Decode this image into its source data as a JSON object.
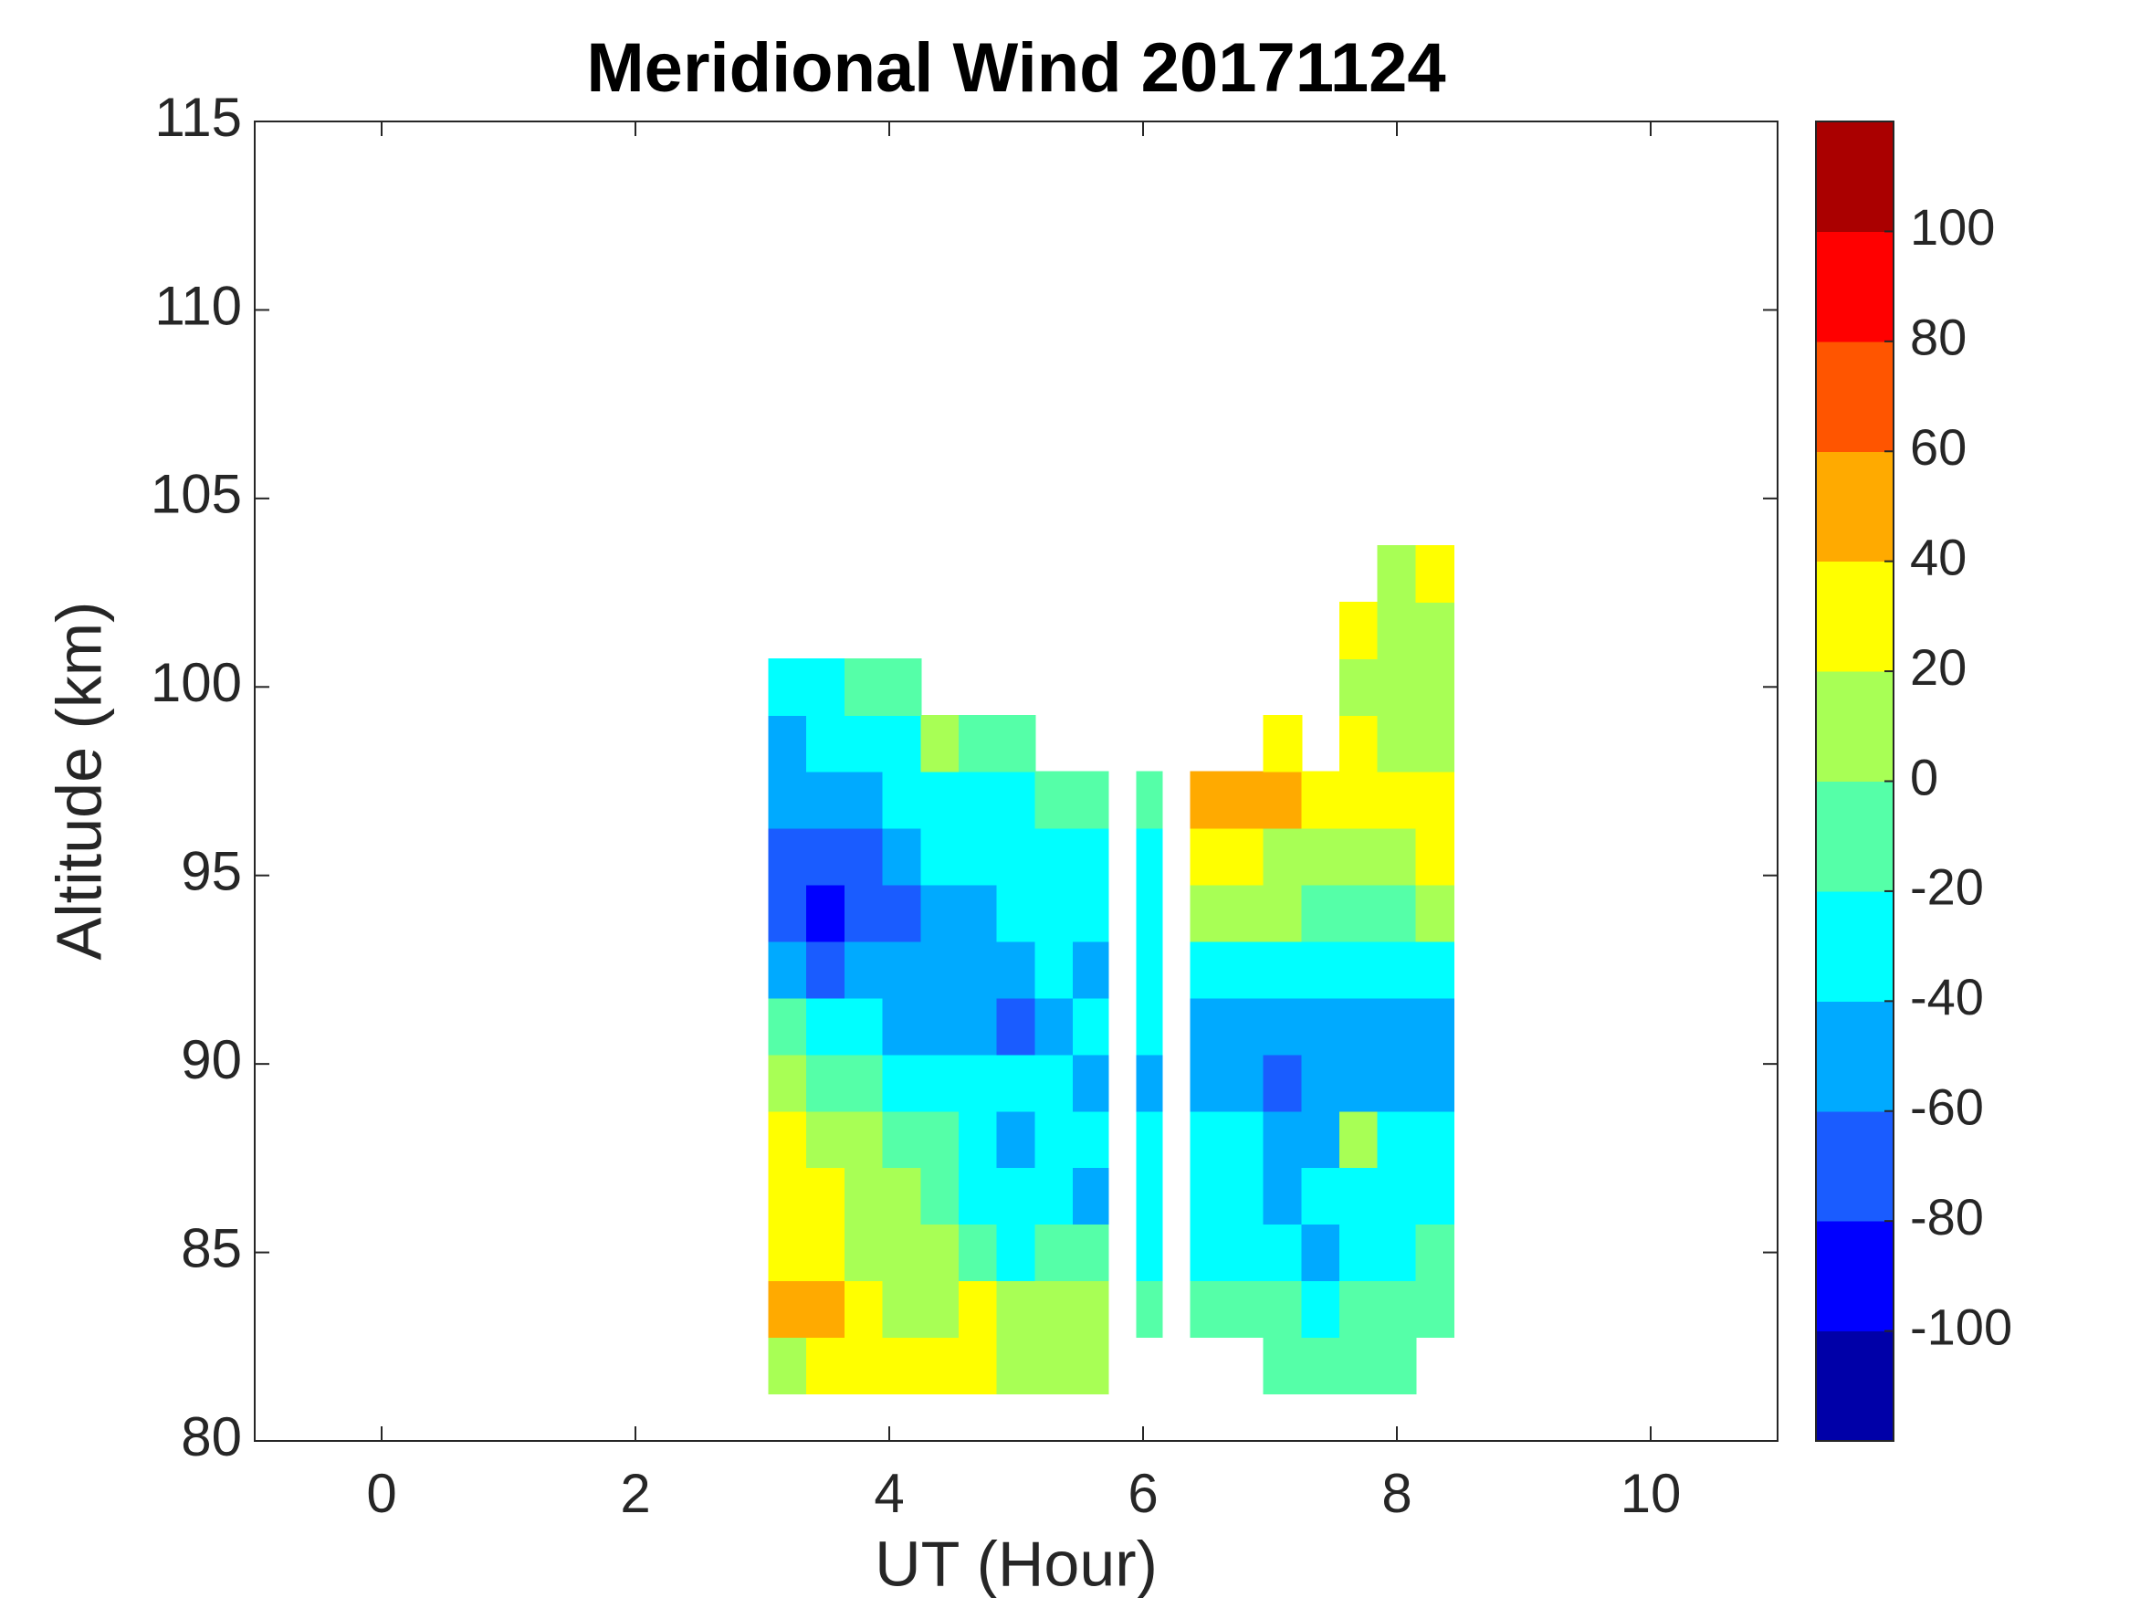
{
  "chart_data": {
    "type": "contour",
    "title": "Meridional Wind 20171124",
    "xlabel": "UT (Hour)",
    "ylabel": "Altitude (km)",
    "xlim": [
      -1,
      11
    ],
    "xticks": [
      0,
      2,
      4,
      6,
      8,
      10
    ],
    "ylim": [
      80,
      115
    ],
    "yticks": [
      80,
      85,
      90,
      95,
      100,
      105,
      110,
      115
    ],
    "x": [
      3.2,
      3.5,
      3.8,
      4.1,
      4.4,
      4.7,
      5.0,
      5.3,
      5.6,
      5.85,
      6.05,
      6.25,
      6.5,
      6.8,
      7.1,
      7.4,
      7.7,
      8.0,
      8.3
    ],
    "y": [
      82,
      83.5,
      85,
      86.5,
      88,
      89.5,
      91,
      92.5,
      94,
      95.5,
      97,
      98.5,
      100,
      101.5,
      103
    ],
    "z": [
      [
        10,
        25,
        25,
        25,
        30,
        25,
        10,
        10,
        5,
        null,
        null,
        null,
        null,
        null,
        -10,
        -10,
        -5,
        -10,
        null
      ],
      [
        45,
        40,
        30,
        10,
        5,
        25,
        5,
        10,
        5,
        null,
        -10,
        null,
        -15,
        -10,
        -15,
        -25,
        -20,
        -15,
        -10
      ],
      [
        30,
        30,
        15,
        5,
        5,
        -5,
        -25,
        -15,
        -10,
        null,
        -30,
        null,
        -30,
        -30,
        -35,
        -50,
        -30,
        -30,
        -15
      ],
      [
        30,
        25,
        10,
        5,
        -5,
        -25,
        -30,
        -30,
        -45,
        null,
        -30,
        null,
        -30,
        -30,
        -45,
        -30,
        -30,
        -25,
        -25
      ],
      [
        25,
        10,
        5,
        -5,
        -15,
        -35,
        -45,
        -30,
        -30,
        null,
        -30,
        null,
        -30,
        -25,
        -50,
        -45,
        10,
        -30,
        -30
      ],
      [
        10,
        -10,
        -15,
        -25,
        -30,
        -30,
        -30,
        -40,
        -45,
        null,
        -45,
        null,
        -45,
        -45,
        -65,
        -60,
        -50,
        -45,
        -50
      ],
      [
        -15,
        -40,
        -35,
        -45,
        -45,
        -50,
        -65,
        -45,
        -30,
        null,
        -30,
        null,
        -45,
        -50,
        -50,
        -45,
        -55,
        -55,
        -45
      ],
      [
        -50,
        -70,
        -60,
        -50,
        -50,
        -55,
        -50,
        -40,
        -45,
        null,
        -30,
        null,
        -30,
        -25,
        -30,
        -40,
        -30,
        -30,
        -25
      ],
      [
        -70,
        -85,
        -75,
        -70,
        -45,
        -50,
        -40,
        -30,
        -30,
        null,
        -30,
        null,
        10,
        5,
        0,
        -10,
        -10,
        -5,
        15
      ],
      [
        -70,
        -70,
        -65,
        -50,
        -40,
        -40,
        -30,
        -30,
        -30,
        null,
        -30,
        null,
        25,
        25,
        15,
        10,
        5,
        10,
        20
      ],
      [
        -50,
        -45,
        -45,
        -30,
        -30,
        -25,
        -30,
        -15,
        -10,
        null,
        -10,
        null,
        45,
        50,
        45,
        30,
        25,
        20,
        25
      ],
      [
        -55,
        -30,
        -30,
        -25,
        0,
        -15,
        -15,
        null,
        null,
        null,
        null,
        null,
        null,
        null,
        30,
        null,
        20,
        10,
        10
      ],
      [
        -30,
        -25,
        -10,
        -10,
        null,
        null,
        null,
        null,
        null,
        null,
        null,
        null,
        null,
        null,
        null,
        null,
        10,
        10,
        15
      ],
      [
        null,
        null,
        null,
        null,
        null,
        null,
        null,
        null,
        null,
        null,
        null,
        null,
        null,
        null,
        null,
        null,
        30,
        5,
        10
      ],
      [
        null,
        null,
        null,
        null,
        null,
        null,
        null,
        null,
        null,
        null,
        null,
        null,
        null,
        null,
        null,
        null,
        null,
        5,
        20
      ]
    ],
    "levels": [
      -120,
      -100,
      -80,
      -60,
      -40,
      -20,
      0,
      20,
      40,
      60,
      80,
      100,
      120
    ],
    "colors": [
      "#0000a8",
      "#0000ff",
      "#1a5cff",
      "#00aaff",
      "#00ffff",
      "#55ffa8",
      "#a8ff55",
      "#ffff00",
      "#ffaa00",
      "#ff5500",
      "#ff0000",
      "#aa0000"
    ],
    "clim": [
      -120,
      120
    ],
    "cticks": [
      -100,
      -80,
      -60,
      -40,
      -20,
      0,
      20,
      40,
      60,
      80,
      100
    ]
  }
}
